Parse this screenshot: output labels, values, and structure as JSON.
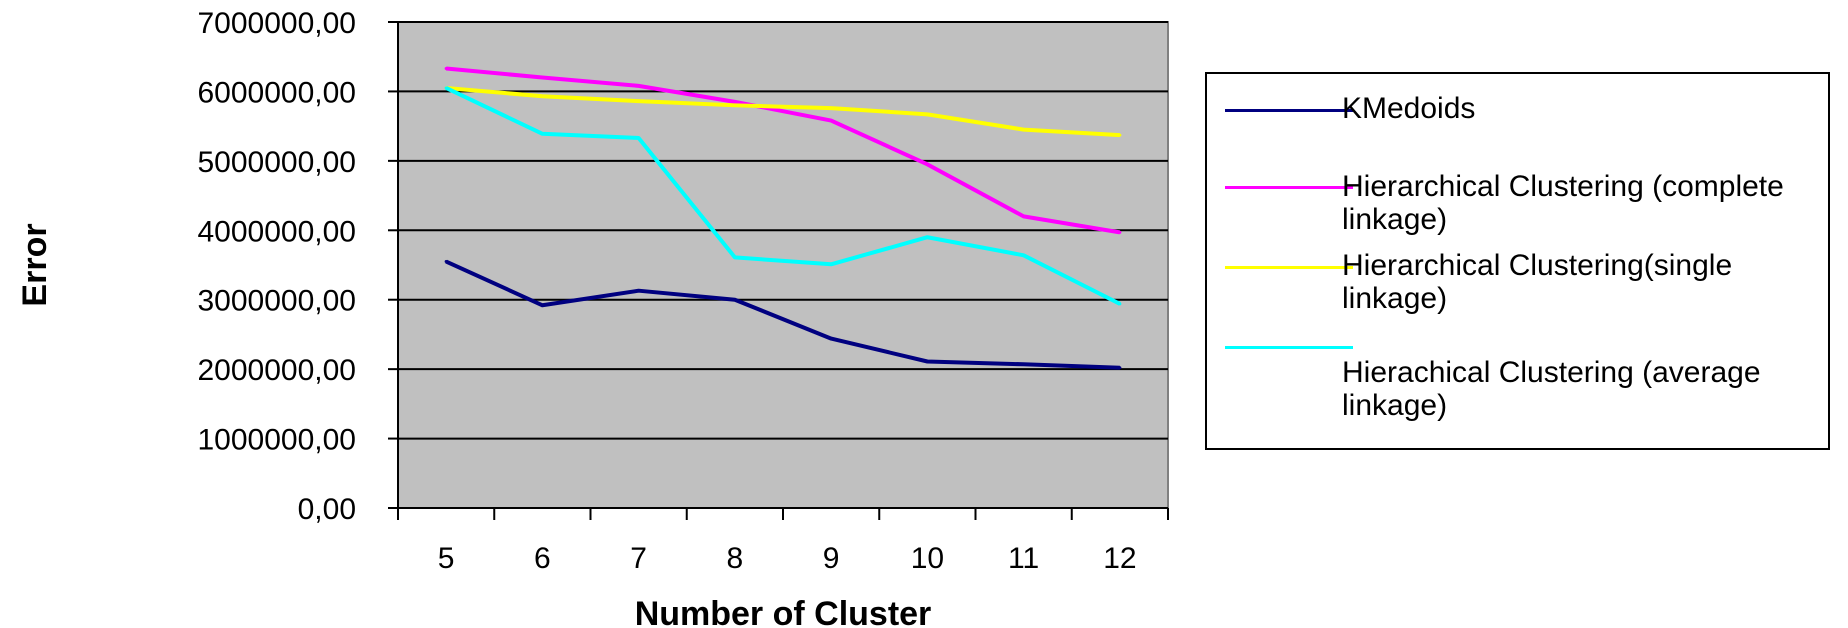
{
  "chart_data": {
    "type": "line",
    "title": "",
    "xlabel": "Number of Cluster",
    "ylabel": "Error",
    "categories": [
      "5",
      "6",
      "7",
      "8",
      "9",
      "10",
      "11",
      "12"
    ],
    "ylim": [
      0,
      7000000
    ],
    "yticks": [
      "0,00",
      "1000000,00",
      "2000000,00",
      "3000000,00",
      "4000000,00",
      "5000000,00",
      "6000000,00",
      "7000000,00"
    ],
    "grid": true,
    "plot_background": "#c0c0c0",
    "legend_position": "right",
    "series": [
      {
        "name": "KMedoids",
        "color": "#000080",
        "values": [
          3550000,
          2920000,
          3130000,
          3000000,
          2440000,
          2110000,
          2070000,
          2020000
        ]
      },
      {
        "name": "Hierarchical Clustering (complete linkage)",
        "color": "#ff00ff",
        "values": [
          6330000,
          6200000,
          6080000,
          5850000,
          5580000,
          4950000,
          4200000,
          3970000
        ]
      },
      {
        "name": "Hierarchical Clustering(single linkage)",
        "color": "#ffff00",
        "values": [
          6050000,
          5930000,
          5860000,
          5800000,
          5760000,
          5670000,
          5450000,
          5370000
        ]
      },
      {
        "name": "Hierachical Clustering (average linkage)",
        "color": "#00ffff",
        "values": [
          6050000,
          5390000,
          5330000,
          3610000,
          3510000,
          3900000,
          3640000,
          2940000
        ]
      }
    ]
  }
}
